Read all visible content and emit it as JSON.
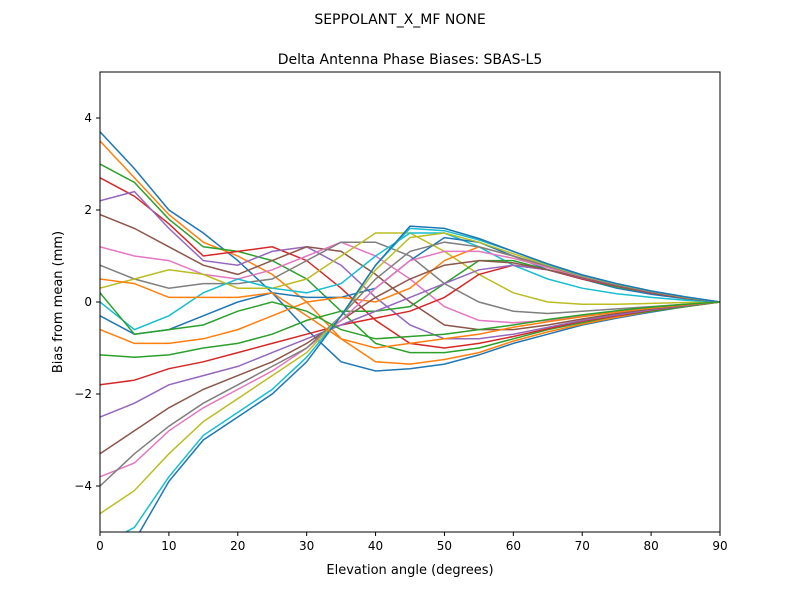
{
  "chart_data": {
    "type": "line",
    "suptitle": "SEPPOLANT_X_MF  NONE",
    "title": "Delta Antenna Phase Biases: SBAS-L5",
    "xlabel": "Elevation angle (degrees)",
    "ylabel": "Bias from mean (mm)",
    "xlim": [
      0,
      90
    ],
    "ylim": [
      -5,
      5
    ],
    "xticks": [
      0,
      10,
      20,
      30,
      40,
      50,
      60,
      70,
      80,
      90
    ],
    "yticks": [
      -4,
      -2,
      0,
      2,
      4
    ],
    "ytick_labels": [
      "−4",
      "−2",
      "0",
      "2",
      "4"
    ],
    "grid": false,
    "legend": "none",
    "colors": [
      "#1f77b4",
      "#ff7f0e",
      "#2ca02c",
      "#d62728",
      "#9467bd",
      "#8c564b",
      "#e377c2",
      "#7f7f7f",
      "#bcbd22",
      "#17becf"
    ],
    "x": [
      0,
      5,
      10,
      15,
      20,
      25,
      30,
      35,
      40,
      45,
      50,
      55,
      60,
      65,
      70,
      75,
      80,
      85,
      90
    ],
    "series": [
      {
        "values": [
          3.7,
          2.9,
          2.0,
          1.5,
          0.9,
          0.2,
          -0.6,
          -1.3,
          -1.5,
          -1.45,
          -1.35,
          -1.15,
          -0.9,
          -0.7,
          -0.5,
          -0.35,
          -0.22,
          -0.1,
          0
        ]
      },
      {
        "values": [
          3.5,
          2.7,
          1.9,
          1.3,
          1.0,
          0.6,
          0.0,
          -0.8,
          -1.3,
          -1.35,
          -1.25,
          -1.1,
          -0.85,
          -0.65,
          -0.48,
          -0.33,
          -0.2,
          -0.1,
          0
        ]
      },
      {
        "values": [
          3.0,
          2.6,
          1.8,
          1.2,
          1.1,
          0.9,
          0.5,
          -0.2,
          -0.9,
          -1.1,
          -1.1,
          -1.0,
          -0.8,
          -0.6,
          -0.45,
          -0.3,
          -0.2,
          -0.1,
          0
        ]
      },
      {
        "values": [
          2.7,
          2.3,
          1.7,
          1.0,
          1.1,
          1.2,
          0.9,
          0.3,
          -0.4,
          -0.9,
          -1.0,
          -0.9,
          -0.75,
          -0.58,
          -0.42,
          -0.3,
          -0.18,
          -0.08,
          0
        ]
      },
      {
        "values": [
          2.2,
          2.4,
          1.6,
          0.9,
          0.8,
          1.1,
          1.2,
          0.8,
          0.1,
          -0.5,
          -0.8,
          -0.8,
          -0.7,
          -0.55,
          -0.4,
          -0.28,
          -0.17,
          -0.08,
          0
        ]
      },
      {
        "values": [
          1.9,
          1.6,
          1.2,
          0.8,
          0.6,
          0.9,
          1.2,
          1.1,
          0.6,
          0.0,
          -0.5,
          -0.6,
          -0.6,
          -0.5,
          -0.37,
          -0.25,
          -0.15,
          -0.07,
          0
        ]
      },
      {
        "values": [
          1.2,
          1.0,
          0.9,
          0.6,
          0.5,
          0.7,
          1.0,
          1.3,
          1.0,
          0.5,
          -0.1,
          -0.4,
          -0.45,
          -0.4,
          -0.3,
          -0.22,
          -0.13,
          -0.06,
          0
        ]
      },
      {
        "values": [
          0.8,
          0.5,
          0.3,
          0.4,
          0.4,
          0.5,
          0.9,
          1.3,
          1.3,
          1.0,
          0.4,
          0.0,
          -0.2,
          -0.25,
          -0.2,
          -0.15,
          -0.1,
          -0.05,
          0
        ]
      },
      {
        "values": [
          0.3,
          0.5,
          0.7,
          0.6,
          0.3,
          0.3,
          0.5,
          1.0,
          1.5,
          1.5,
          1.1,
          0.6,
          0.2,
          0.0,
          -0.05,
          -0.05,
          -0.03,
          -0.01,
          0
        ]
      },
      {
        "values": [
          0.0,
          -0.6,
          -0.3,
          0.2,
          0.5,
          0.3,
          0.2,
          0.4,
          1.0,
          1.5,
          1.5,
          1.2,
          0.8,
          0.5,
          0.3,
          0.18,
          0.1,
          0.04,
          0
        ]
      },
      {
        "values": [
          -0.3,
          -0.7,
          -0.6,
          -0.3,
          0.0,
          0.2,
          0.1,
          0.1,
          0.3,
          0.9,
          1.4,
          1.3,
          1.0,
          0.7,
          0.5,
          0.3,
          0.17,
          0.07,
          0
        ]
      },
      {
        "values": [
          -0.6,
          -0.9,
          -0.9,
          -0.8,
          -0.6,
          -0.3,
          0.0,
          0.1,
          0.0,
          0.3,
          0.9,
          1.2,
          1.0,
          0.75,
          0.53,
          0.35,
          0.2,
          0.09,
          0
        ]
      },
      {
        "values": [
          -1.15,
          -1.2,
          -1.15,
          -1.0,
          -0.9,
          -0.7,
          -0.4,
          -0.2,
          -0.2,
          -0.1,
          0.4,
          0.9,
          0.9,
          0.7,
          0.5,
          0.33,
          0.2,
          0.09,
          0
        ]
      },
      {
        "values": [
          -1.8,
          -1.7,
          -1.45,
          -1.3,
          -1.1,
          -0.9,
          -0.7,
          -0.5,
          -0.35,
          -0.2,
          0.1,
          0.6,
          0.8,
          0.7,
          0.5,
          0.35,
          0.2,
          0.09,
          0
        ]
      },
      {
        "values": [
          -2.5,
          -2.2,
          -1.8,
          -1.6,
          -1.4,
          -1.1,
          -0.8,
          -0.5,
          -0.2,
          0.1,
          0.4,
          0.7,
          0.8,
          0.7,
          0.52,
          0.36,
          0.21,
          0.1,
          0
        ]
      },
      {
        "values": [
          -3.3,
          -2.8,
          -2.3,
          -1.9,
          -1.6,
          -1.3,
          -0.9,
          -0.4,
          0.1,
          0.5,
          0.8,
          0.9,
          0.85,
          0.7,
          0.53,
          0.37,
          0.22,
          0.1,
          0
        ]
      },
      {
        "values": [
          -3.8,
          -3.5,
          -2.8,
          -2.3,
          -1.9,
          -1.5,
          -1.0,
          -0.4,
          0.3,
          0.9,
          1.1,
          1.1,
          0.95,
          0.75,
          0.55,
          0.38,
          0.23,
          0.1,
          0
        ]
      },
      {
        "values": [
          -4.0,
          -3.3,
          -2.7,
          -2.2,
          -1.8,
          -1.4,
          -1.0,
          -0.3,
          0.5,
          1.1,
          1.3,
          1.2,
          1.0,
          0.78,
          0.56,
          0.38,
          0.23,
          0.1,
          0
        ]
      },
      {
        "values": [
          -4.6,
          -4.1,
          -3.3,
          -2.6,
          -2.1,
          -1.6,
          -1.1,
          -0.3,
          0.7,
          1.4,
          1.5,
          1.3,
          1.05,
          0.8,
          0.57,
          0.39,
          0.23,
          0.1,
          0
        ]
      },
      {
        "values": [
          -5.3,
          -4.9,
          -3.8,
          -2.9,
          -2.4,
          -1.9,
          -1.2,
          -0.3,
          0.8,
          1.6,
          1.55,
          1.35,
          1.1,
          0.82,
          0.58,
          0.4,
          0.24,
          0.11,
          0
        ]
      },
      {
        "values": [
          -5.6,
          -5.2,
          -3.9,
          -3.0,
          -2.5,
          -2.0,
          -1.3,
          -0.3,
          0.8,
          1.65,
          1.6,
          1.38,
          1.1,
          0.83,
          0.59,
          0.4,
          0.24,
          0.11,
          0
        ]
      },
      {
        "values": [
          0.5,
          0.4,
          0.1,
          0.1,
          0.1,
          0.2,
          -0.3,
          -0.8,
          -1.0,
          -0.9,
          -0.8,
          -0.7,
          -0.55,
          -0.43,
          -0.32,
          -0.22,
          -0.13,
          -0.06,
          0
        ]
      },
      {
        "values": [
          0.2,
          -0.7,
          -0.6,
          -0.5,
          -0.2,
          0.0,
          -0.2,
          -0.6,
          -0.8,
          -0.75,
          -0.7,
          -0.6,
          -0.5,
          -0.38,
          -0.28,
          -0.19,
          -0.11,
          -0.05,
          0
        ]
      }
    ]
  }
}
